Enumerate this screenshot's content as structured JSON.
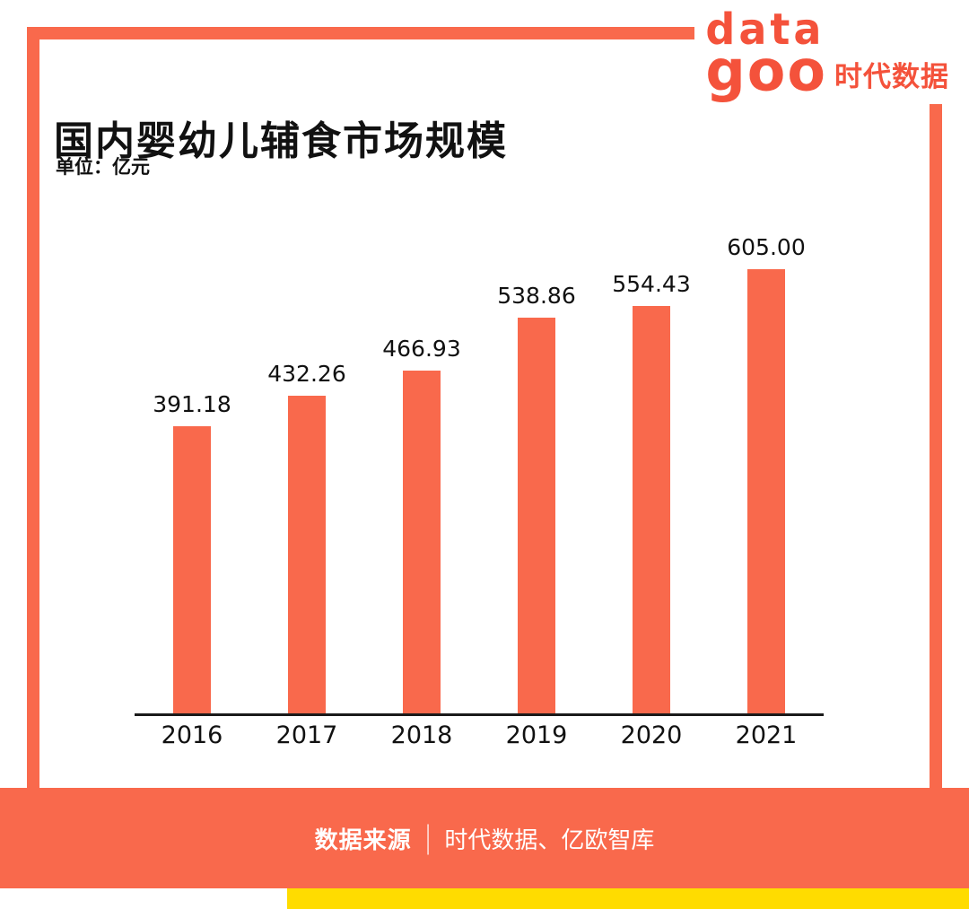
{
  "title": "国内婴幼儿辅食市场规模",
  "unit_label": "单位：亿元",
  "logo": {
    "line1": "data",
    "line2": "goo",
    "brand": "时代数据"
  },
  "footer": {
    "source_label": "数据来源",
    "separator": "|",
    "source_text": "时代数据、亿欧智库"
  },
  "colors": {
    "accent": "#F9694C",
    "logo": "#F4523B",
    "yellow": "#FFDC00",
    "text": "#111111"
  },
  "chart_data": {
    "type": "bar",
    "title": "国内婴幼儿辅食市场规模",
    "ylabel": "亿元",
    "categories": [
      "2016",
      "2017",
      "2018",
      "2019",
      "2020",
      "2021"
    ],
    "values": [
      391.18,
      432.26,
      466.93,
      538.86,
      554.43,
      605.0
    ],
    "value_labels": [
      "391.18",
      "432.26",
      "466.93",
      "538.86",
      "554.43",
      "605.00"
    ],
    "ylim": [
      0,
      605
    ],
    "grid": false,
    "legend": "none"
  }
}
